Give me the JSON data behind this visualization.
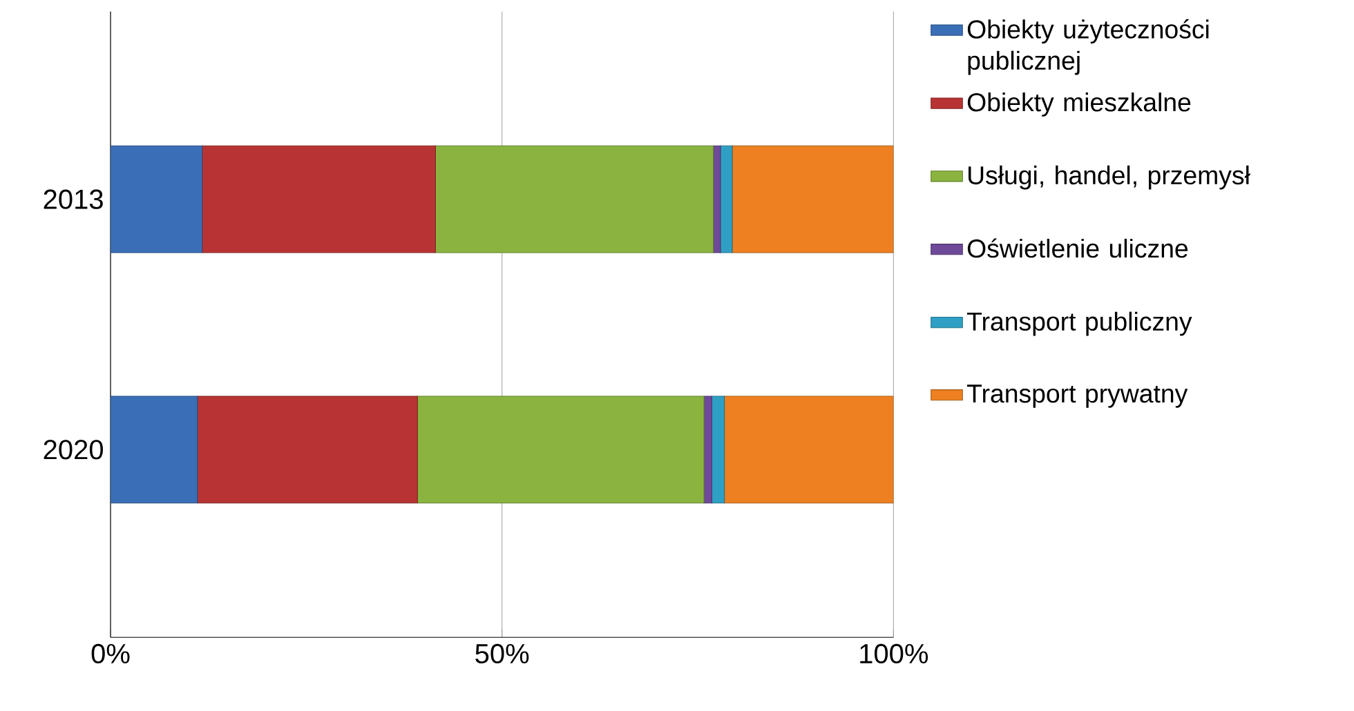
{
  "chart_data": {
    "type": "bar",
    "orientation": "horizontal",
    "stacked": true,
    "categories": [
      "2013",
      "2020"
    ],
    "series": [
      {
        "name": "Obiekty użyteczności publicznej",
        "color": "#3a6fb7",
        "values": [
          11.7,
          11.1
        ]
      },
      {
        "name": "Obiekty mieszkalne",
        "color": "#b83434",
        "values": [
          29.8,
          28.1
        ]
      },
      {
        "name": "Usługi, handel, przemysł",
        "color": "#8ab43f",
        "values": [
          35.5,
          36.6
        ]
      },
      {
        "name": "Oświetlenie uliczne",
        "color": "#6f4a9a",
        "values": [
          0.9,
          1.0
        ]
      },
      {
        "name": "Transport publiczny",
        "color": "#2fa0c4",
        "values": [
          1.5,
          1.6
        ]
      },
      {
        "name": "Transport prywatny",
        "color": "#ee8021",
        "values": [
          20.6,
          21.6
        ]
      }
    ],
    "xlim": [
      0,
      100
    ],
    "xticks": [
      {
        "value": 0,
        "label": "0%"
      },
      {
        "value": 50,
        "label": "50%"
      },
      {
        "value": 100,
        "label": "100%"
      }
    ],
    "grid": "x",
    "legend": "right"
  }
}
